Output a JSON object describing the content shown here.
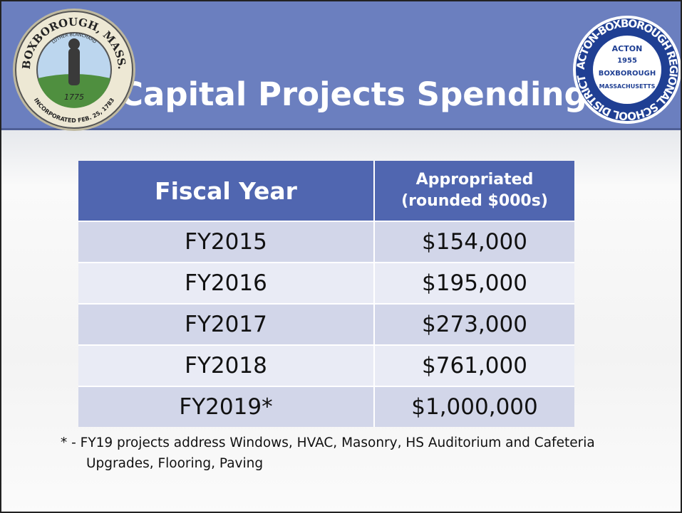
{
  "header": {
    "title": "Capital Projects Spending"
  },
  "logos": {
    "left": {
      "ring_top": "BOXBOROUGH, MASS.",
      "ring_bottom": "INCORPORATED FEB. 25, 1783",
      "banner": "LUTHER BLANCHARD",
      "year": "1775"
    },
    "right": {
      "ring": "ACTON-BOXBOROUGH REGIONAL SCHOOL DISTRICT",
      "lines": [
        "ACTON",
        "1955",
        "BOXBOROUGH",
        "MASSACHUSETTS"
      ]
    }
  },
  "table": {
    "columns": [
      "Fiscal Year",
      [
        "Appropriated",
        "(rounded $000s)"
      ]
    ],
    "rows": [
      [
        "FY2015",
        "$154,000"
      ],
      [
        "FY2016",
        "$195,000"
      ],
      [
        "FY2017",
        "$273,000"
      ],
      [
        "FY2018",
        "$761,000"
      ],
      [
        "FY2019*",
        "$1,000,000"
      ]
    ]
  },
  "footnote": [
    "* - FY19 projects address Windows, HVAC, Masonry, HS Auditorium and Cafeteria",
    "Upgrades, Flooring, Paving"
  ]
}
